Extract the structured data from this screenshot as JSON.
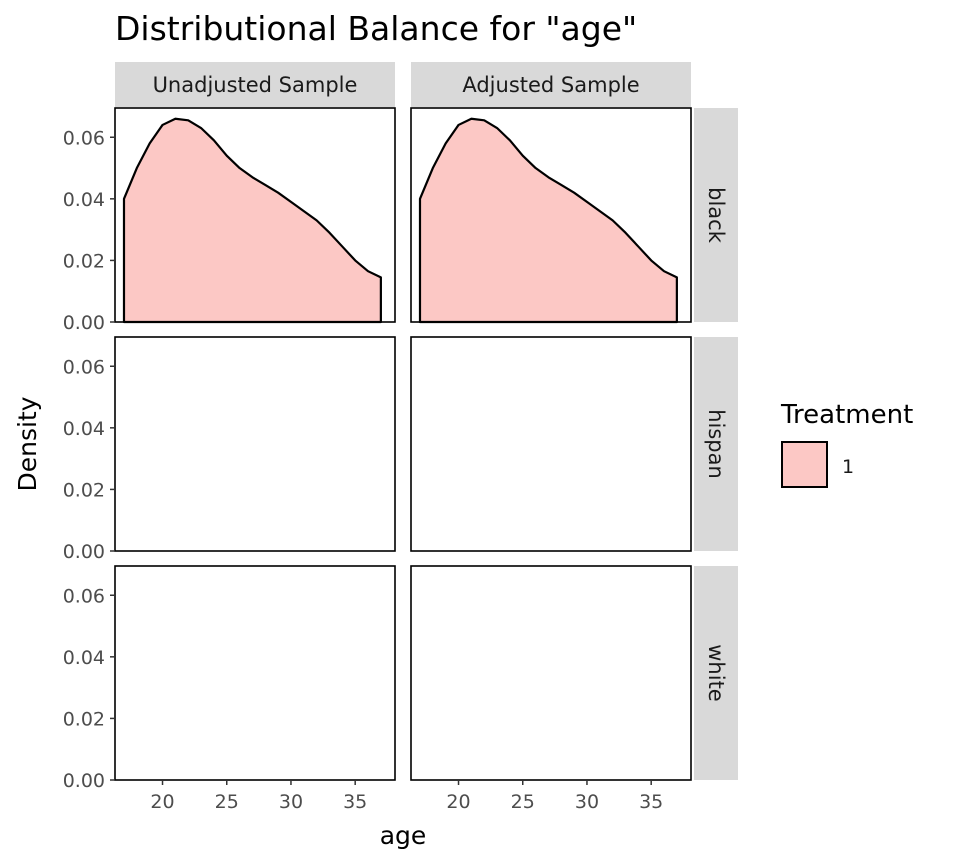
{
  "chart_data": {
    "type": "area",
    "title": "Distributional Balance for \"age\"",
    "xlabel": "age",
    "ylabel": "Density",
    "columns": [
      "Unadjusted Sample",
      "Adjusted Sample"
    ],
    "rows": [
      "black",
      "hispan",
      "white"
    ],
    "x_ticks": [
      20,
      25,
      30,
      35
    ],
    "y_ticks": [
      "0.00",
      "0.02",
      "0.04",
      "0.06"
    ],
    "xlim": [
      16.3,
      38.1
    ],
    "ylim": [
      0,
      0.0695
    ],
    "legend": {
      "title": "Treatment",
      "position": "right",
      "entries": [
        "1"
      ]
    },
    "fill_color": "#F8766D",
    "fill_opacity": 0.4,
    "grid": false,
    "series": [
      {
        "row": "black",
        "column": "Unadjusted Sample",
        "x": [
          17,
          18,
          19,
          20,
          21,
          22,
          23,
          24,
          25,
          26,
          27,
          28,
          29,
          30,
          31,
          32,
          33,
          34,
          35,
          36,
          37
        ],
        "y": [
          0.04,
          0.05,
          0.058,
          0.064,
          0.066,
          0.0655,
          0.063,
          0.059,
          0.054,
          0.05,
          0.047,
          0.0445,
          0.042,
          0.039,
          0.036,
          0.033,
          0.029,
          0.0245,
          0.02,
          0.0165,
          0.0145
        ]
      },
      {
        "row": "black",
        "column": "Adjusted Sample",
        "x": [
          17,
          18,
          19,
          20,
          21,
          22,
          23,
          24,
          25,
          26,
          27,
          28,
          29,
          30,
          31,
          32,
          33,
          34,
          35,
          36,
          37
        ],
        "y": [
          0.04,
          0.05,
          0.058,
          0.064,
          0.066,
          0.0655,
          0.063,
          0.059,
          0.054,
          0.05,
          0.047,
          0.0445,
          0.042,
          0.039,
          0.036,
          0.033,
          0.029,
          0.0245,
          0.02,
          0.0165,
          0.0145
        ]
      }
    ]
  }
}
